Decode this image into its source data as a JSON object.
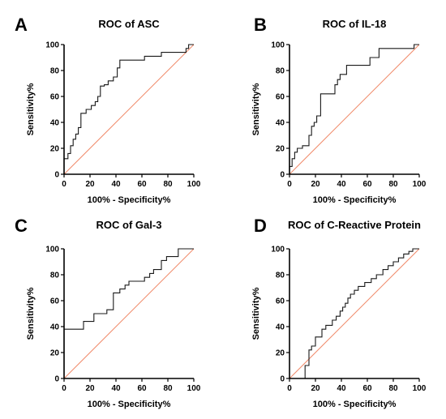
{
  "colors": {
    "roc": "#1a1a1a",
    "reference": "#f08a6a",
    "axis": "#000000"
  },
  "chart_data": [
    {
      "type": "line",
      "panel": "A",
      "title": "ROC of ASC",
      "xlabel": "100% - Specificity%",
      "ylabel": "Sensitivity%",
      "xlim": [
        0,
        100
      ],
      "ylim": [
        0,
        100
      ],
      "xticks": [
        0,
        20,
        40,
        60,
        80,
        100
      ],
      "yticks": [
        0,
        20,
        40,
        60,
        80,
        100
      ],
      "grid": false,
      "reference_line": [
        [
          0,
          0
        ],
        [
          100,
          100
        ]
      ],
      "series": [
        {
          "x": [
            0,
            0,
            3,
            3,
            5,
            5,
            7,
            7,
            9,
            9,
            11,
            11,
            13,
            13,
            17,
            17,
            21,
            21,
            24,
            24,
            26,
            26,
            28,
            28,
            31,
            31,
            34,
            34,
            38,
            38,
            41,
            41,
            43,
            43,
            62,
            62,
            75,
            75,
            94,
            94,
            96,
            96,
            100
          ],
          "y": [
            0,
            12,
            12,
            16,
            16,
            22,
            22,
            27,
            27,
            31,
            31,
            36,
            36,
            47,
            47,
            50,
            50,
            53,
            53,
            56,
            56,
            60,
            60,
            68,
            68,
            69,
            69,
            72,
            72,
            75,
            75,
            82,
            82,
            88,
            88,
            91,
            91,
            94,
            94,
            97,
            97,
            100,
            100
          ]
        }
      ]
    },
    {
      "type": "line",
      "panel": "B",
      "title": "ROC of IL-18",
      "xlabel": "100% - Specificity%",
      "ylabel": "Sensitivity%",
      "xlim": [
        0,
        100
      ],
      "ylim": [
        0,
        100
      ],
      "xticks": [
        0,
        20,
        40,
        60,
        80,
        100
      ],
      "yticks": [
        0,
        20,
        40,
        60,
        80,
        100
      ],
      "grid": false,
      "reference_line": [
        [
          0,
          0
        ],
        [
          100,
          100
        ]
      ],
      "series": [
        {
          "x": [
            0,
            0,
            2,
            2,
            4,
            4,
            6,
            6,
            10,
            10,
            15,
            15,
            17,
            17,
            19,
            19,
            21,
            21,
            24,
            24,
            35,
            35,
            37,
            37,
            39,
            39,
            44,
            44,
            62,
            62,
            69,
            69,
            96,
            96,
            100
          ],
          "y": [
            0,
            6,
            6,
            12,
            12,
            17,
            17,
            20,
            20,
            22,
            22,
            30,
            30,
            37,
            37,
            40,
            40,
            45,
            45,
            62,
            62,
            69,
            69,
            73,
            73,
            77,
            77,
            84,
            84,
            90,
            90,
            97,
            97,
            100,
            100
          ]
        }
      ]
    },
    {
      "type": "line",
      "panel": "C",
      "title": "ROC of Gal-3",
      "xlabel": "100% - Specificity%",
      "ylabel": "Sensitivity%",
      "xlim": [
        0,
        100
      ],
      "ylim": [
        0,
        100
      ],
      "xticks": [
        0,
        20,
        40,
        60,
        80,
        100
      ],
      "yticks": [
        0,
        20,
        40,
        60,
        80,
        100
      ],
      "grid": false,
      "reference_line": [
        [
          0,
          0
        ],
        [
          100,
          100
        ]
      ],
      "series": [
        {
          "x": [
            0,
            0,
            15,
            15,
            23,
            23,
            33,
            33,
            38,
            38,
            43,
            43,
            47,
            47,
            50,
            50,
            62,
            62,
            66,
            66,
            69,
            69,
            75,
            75,
            79,
            79,
            88,
            88,
            100
          ],
          "y": [
            0,
            38,
            38,
            44,
            44,
            50,
            50,
            53,
            53,
            66,
            66,
            69,
            69,
            72,
            72,
            75,
            75,
            78,
            78,
            81,
            81,
            84,
            84,
            91,
            91,
            94,
            94,
            100,
            100
          ]
        }
      ]
    },
    {
      "type": "line",
      "panel": "D",
      "title": "ROC of C-Reactive Protein",
      "xlabel": "100% - Specificity%",
      "ylabel": "Sensitivity%",
      "xlim": [
        0,
        100
      ],
      "ylim": [
        0,
        100
      ],
      "xticks": [
        0,
        20,
        40,
        60,
        80,
        100
      ],
      "yticks": [
        0,
        20,
        40,
        60,
        80,
        100
      ],
      "grid": false,
      "reference_line": [
        [
          0,
          0
        ],
        [
          100,
          100
        ]
      ],
      "series": [
        {
          "x": [
            0,
            12,
            12,
            15,
            15,
            17,
            17,
            20,
            20,
            25,
            25,
            28,
            28,
            33,
            33,
            36,
            36,
            39,
            39,
            41,
            41,
            43,
            43,
            45,
            45,
            47,
            47,
            50,
            50,
            53,
            53,
            58,
            58,
            63,
            63,
            67,
            67,
            72,
            72,
            76,
            76,
            80,
            80,
            84,
            84,
            88,
            88,
            92,
            92,
            95,
            95,
            100
          ],
          "y": [
            0,
            0,
            10,
            10,
            22,
            22,
            25,
            25,
            32,
            32,
            38,
            38,
            41,
            41,
            45,
            45,
            48,
            48,
            52,
            52,
            55,
            55,
            58,
            58,
            62,
            62,
            65,
            65,
            68,
            68,
            71,
            71,
            74,
            74,
            77,
            77,
            80,
            80,
            84,
            84,
            87,
            87,
            90,
            90,
            93,
            93,
            96,
            96,
            98,
            98,
            100,
            100
          ]
        }
      ]
    }
  ]
}
